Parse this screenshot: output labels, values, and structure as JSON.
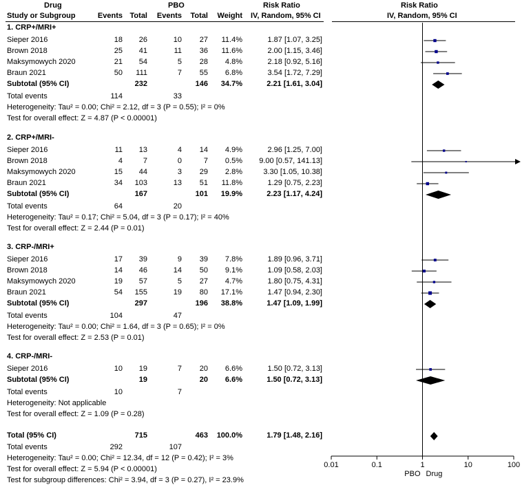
{
  "header": {
    "study": "Study or Subgroup",
    "drug": "Drug",
    "pbo": "PBO",
    "events": "Events",
    "total": "Total",
    "weight": "Weight",
    "rr": "Risk Ratio",
    "method": "IV, Random, 95% CI"
  },
  "groups": [
    {
      "title": "1. CRP+/MRI+",
      "studies": [
        {
          "name": "Sieper 2016",
          "de": "18",
          "dt": "26",
          "pe": "10",
          "pt": "27",
          "w": "11.4%",
          "ci": "1.87 [1.07, 3.25]"
        },
        {
          "name": "Brown 2018",
          "de": "25",
          "dt": "41",
          "pe": "11",
          "pt": "36",
          "w": "11.6%",
          "ci": "2.00 [1.15, 3.46]"
        },
        {
          "name": "Maksymowych 2020",
          "de": "21",
          "dt": "54",
          "pe": "5",
          "pt": "28",
          "w": "4.8%",
          "ci": "2.18 [0.92, 5.16]"
        },
        {
          "name": "Braun 2021",
          "de": "50",
          "dt": "111",
          "pe": "7",
          "pt": "55",
          "w": "6.8%",
          "ci": "3.54 [1.72, 7.29]"
        }
      ],
      "subtotal": {
        "label": "Subtotal (95% CI)",
        "dt": "232",
        "pt": "146",
        "w": "34.7%",
        "ci": "2.21 [1.61, 3.04]"
      },
      "events": {
        "label": "Total events",
        "de": "114",
        "pe": "33"
      },
      "het": "Heterogeneity: Tau² = 0.00; Chi² = 2.12, df = 3 (P = 0.55); I² = 0%",
      "overall": "Test for overall effect: Z = 4.87 (P < 0.00001)"
    },
    {
      "title": "2. CRP+/MRI-",
      "studies": [
        {
          "name": "Sieper 2016",
          "de": "11",
          "dt": "13",
          "pe": "4",
          "pt": "14",
          "w": "4.9%",
          "ci": "2.96 [1.25, 7.00]"
        },
        {
          "name": "Brown 2018",
          "de": "4",
          "dt": "7",
          "pe": "0",
          "pt": "7",
          "w": "0.5%",
          "ci": "9.00 [0.57, 141.13]"
        },
        {
          "name": "Maksymowych 2020",
          "de": "15",
          "dt": "44",
          "pe": "3",
          "pt": "29",
          "w": "2.8%",
          "ci": "3.30 [1.05, 10.38]"
        },
        {
          "name": "Braun 2021",
          "de": "34",
          "dt": "103",
          "pe": "13",
          "pt": "51",
          "w": "11.8%",
          "ci": "1.29 [0.75, 2.23]"
        }
      ],
      "subtotal": {
        "label": "Subtotal (95% CI)",
        "dt": "167",
        "pt": "101",
        "w": "19.9%",
        "ci": "2.23 [1.17, 4.24]"
      },
      "events": {
        "label": "Total events",
        "de": "64",
        "pe": "20"
      },
      "het": "Heterogeneity: Tau² = 0.17; Chi² = 5.04, df = 3 (P = 0.17); I² = 40%",
      "overall": "Test for overall effect: Z = 2.44 (P = 0.01)"
    },
    {
      "title": "3. CRP-/MRI+",
      "studies": [
        {
          "name": "Sieper 2016",
          "de": "17",
          "dt": "39",
          "pe": "9",
          "pt": "39",
          "w": "7.8%",
          "ci": "1.89 [0.96, 3.71]"
        },
        {
          "name": "Brown 2018",
          "de": "14",
          "dt": "46",
          "pe": "14",
          "pt": "50",
          "w": "9.1%",
          "ci": "1.09 [0.58, 2.03]"
        },
        {
          "name": "Maksymowych 2020",
          "de": "19",
          "dt": "57",
          "pe": "5",
          "pt": "27",
          "w": "4.7%",
          "ci": "1.80 [0.75, 4.31]"
        },
        {
          "name": "Braun 2021",
          "de": "54",
          "dt": "155",
          "pe": "19",
          "pt": "80",
          "w": "17.1%",
          "ci": "1.47 [0.94, 2.30]"
        }
      ],
      "subtotal": {
        "label": "Subtotal (95% CI)",
        "dt": "297",
        "pt": "196",
        "w": "38.8%",
        "ci": "1.47 [1.09, 1.99]"
      },
      "events": {
        "label": "Total events",
        "de": "104",
        "pe": "47"
      },
      "het": "Heterogeneity: Tau² = 0.00; Chi² = 1.64, df = 3 (P = 0.65); I² = 0%",
      "overall": "Test for overall effect: Z = 2.53 (P = 0.01)"
    },
    {
      "title": "4. CRP-/MRI-",
      "studies": [
        {
          "name": "Sieper 2016",
          "de": "10",
          "dt": "19",
          "pe": "7",
          "pt": "20",
          "w": "6.6%",
          "ci": "1.50 [0.72, 3.13]"
        }
      ],
      "subtotal": {
        "label": "Subtotal (95% CI)",
        "dt": "19",
        "pt": "20",
        "w": "6.6%",
        "ci": "1.50 [0.72, 3.13]"
      },
      "events": {
        "label": "Total events",
        "de": "10",
        "pe": "7"
      },
      "het": "Heterogeneity: Not applicable",
      "overall": "Test for overall effect: Z = 1.09 (P = 0.28)"
    }
  ],
  "total": {
    "label": "Total (95% CI)",
    "dt": "715",
    "pt": "463",
    "w": "100.0%",
    "ci": "1.79 [1.48, 2.16]"
  },
  "total_events": {
    "label": "Total events",
    "de": "292",
    "pe": "107"
  },
  "total_het": "Heterogeneity: Tau² = 0.00; Chi² = 12.34, df = 12 (P = 0.42); I² = 3%",
  "total_overall": "Test for overall effect: Z = 5.94 (P < 0.00001)",
  "subgroup_diff": "Test for subgroup differences: Chi² = 3.94, df = 3 (P = 0.27), I² = 23.9%",
  "chart_data": {
    "type": "forest",
    "title": "Risk Ratio",
    "subtitle": "IV, Random, 95% CI",
    "xscale": "log",
    "xlim": [
      0.01,
      100
    ],
    "xticks": [
      "0.01",
      "0.1",
      "1",
      "10",
      "100"
    ],
    "xlabel_left": "PBO",
    "xlabel_right": "Drug",
    "colors": {
      "marker": "#00008b",
      "line": "#000000",
      "diamond": "#000000"
    },
    "studies": [
      {
        "group": 1,
        "rr": 1.87,
        "lo": 1.07,
        "hi": 3.25,
        "w": 11.4
      },
      {
        "group": 1,
        "rr": 2.0,
        "lo": 1.15,
        "hi": 3.46,
        "w": 11.6
      },
      {
        "group": 1,
        "rr": 2.18,
        "lo": 0.92,
        "hi": 5.16,
        "w": 4.8
      },
      {
        "group": 1,
        "rr": 3.54,
        "lo": 1.72,
        "hi": 7.29,
        "w": 6.8
      },
      {
        "group": 2,
        "rr": 2.96,
        "lo": 1.25,
        "hi": 7.0,
        "w": 4.9
      },
      {
        "group": 2,
        "rr": 9.0,
        "lo": 0.57,
        "hi": 141.13,
        "w": 0.5
      },
      {
        "group": 2,
        "rr": 3.3,
        "lo": 1.05,
        "hi": 10.38,
        "w": 2.8
      },
      {
        "group": 2,
        "rr": 1.29,
        "lo": 0.75,
        "hi": 2.23,
        "w": 11.8
      },
      {
        "group": 3,
        "rr": 1.89,
        "lo": 0.96,
        "hi": 3.71,
        "w": 7.8
      },
      {
        "group": 3,
        "rr": 1.09,
        "lo": 0.58,
        "hi": 2.03,
        "w": 9.1
      },
      {
        "group": 3,
        "rr": 1.8,
        "lo": 0.75,
        "hi": 4.31,
        "w": 4.7
      },
      {
        "group": 3,
        "rr": 1.47,
        "lo": 0.94,
        "hi": 2.3,
        "w": 17.1
      },
      {
        "group": 4,
        "rr": 1.5,
        "lo": 0.72,
        "hi": 3.13,
        "w": 6.6
      }
    ],
    "subtotals": [
      {
        "group": 1,
        "rr": 2.21,
        "lo": 1.61,
        "hi": 3.04
      },
      {
        "group": 2,
        "rr": 2.23,
        "lo": 1.17,
        "hi": 4.24
      },
      {
        "group": 3,
        "rr": 1.47,
        "lo": 1.09,
        "hi": 1.99
      },
      {
        "group": 4,
        "rr": 1.5,
        "lo": 0.72,
        "hi": 3.13
      }
    ],
    "overall": {
      "rr": 1.79,
      "lo": 1.48,
      "hi": 2.16
    }
  }
}
